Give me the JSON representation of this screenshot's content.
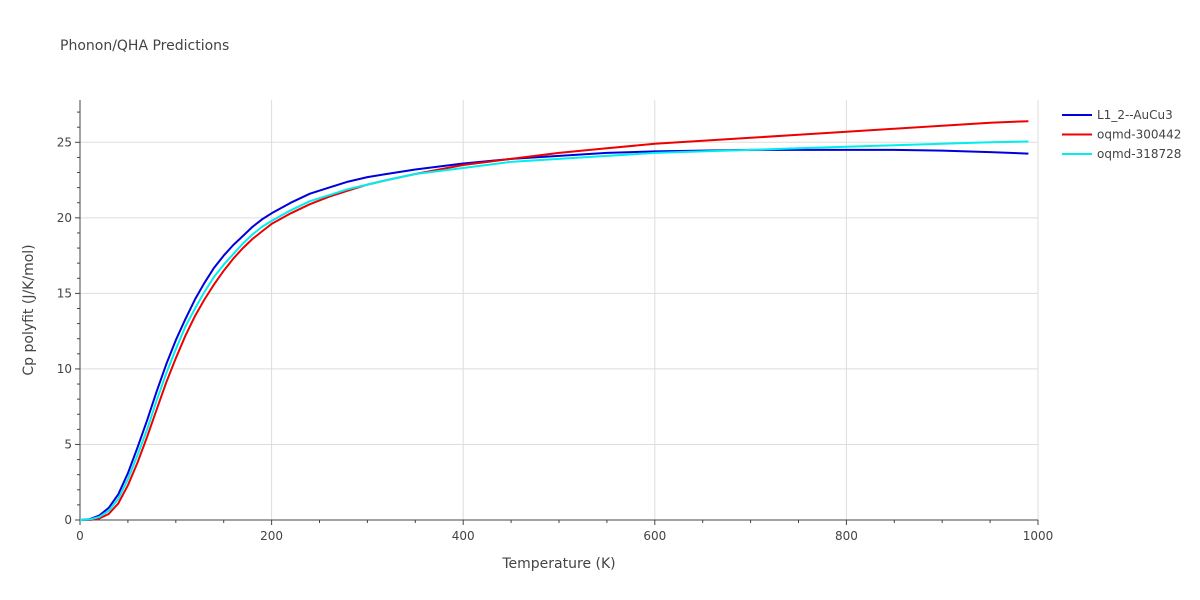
{
  "chart_data": {
    "type": "line",
    "title": "Phonon/QHA Predictions",
    "xlabel": "Temperature (K)",
    "ylabel": "Cp polyfit (J/K/mol)",
    "xlim": [
      0,
      1000
    ],
    "ylim": [
      0,
      27.8
    ],
    "xticks": [
      "0",
      "200",
      "400",
      "600",
      "800",
      "1000"
    ],
    "xtick_values": [
      0,
      200,
      400,
      600,
      800,
      1000
    ],
    "yticks": [
      "0",
      "5",
      "10",
      "15",
      "20",
      "25"
    ],
    "ytick_values": [
      0,
      5,
      10,
      15,
      20,
      25
    ],
    "grid": true,
    "legend_position": "top-right",
    "series": [
      {
        "name": "L1_2--AuCu3",
        "color": "#0000dd",
        "x": [
          0,
          10,
          20,
          30,
          40,
          50,
          60,
          70,
          80,
          90,
          100,
          110,
          120,
          130,
          140,
          150,
          160,
          170,
          180,
          190,
          200,
          220,
          240,
          260,
          280,
          300,
          320,
          350,
          400,
          450,
          500,
          550,
          600,
          650,
          700,
          750,
          800,
          850,
          900,
          950,
          990
        ],
        "y": [
          0,
          0.05,
          0.3,
          0.8,
          1.7,
          3.1,
          4.8,
          6.6,
          8.5,
          10.3,
          11.9,
          13.3,
          14.6,
          15.7,
          16.7,
          17.5,
          18.2,
          18.8,
          19.4,
          19.9,
          20.3,
          21.0,
          21.6,
          22.0,
          22.4,
          22.7,
          22.9,
          23.2,
          23.6,
          23.9,
          24.1,
          24.3,
          24.4,
          24.45,
          24.5,
          24.5,
          24.5,
          24.5,
          24.45,
          24.35,
          24.25
        ]
      },
      {
        "name": "oqmd-300442",
        "color": "#ee0000",
        "x": [
          0,
          10,
          20,
          30,
          40,
          50,
          60,
          70,
          80,
          90,
          100,
          110,
          120,
          130,
          140,
          150,
          160,
          170,
          180,
          190,
          200,
          220,
          240,
          260,
          280,
          300,
          320,
          350,
          400,
          450,
          500,
          550,
          600,
          650,
          700,
          750,
          800,
          850,
          900,
          950,
          990
        ],
        "y": [
          0,
          0,
          0.1,
          0.4,
          1.1,
          2.3,
          3.8,
          5.5,
          7.3,
          9.1,
          10.7,
          12.2,
          13.5,
          14.6,
          15.6,
          16.5,
          17.3,
          18.0,
          18.6,
          19.1,
          19.6,
          20.3,
          20.9,
          21.4,
          21.8,
          22.2,
          22.5,
          22.9,
          23.5,
          23.9,
          24.3,
          24.6,
          24.9,
          25.1,
          25.3,
          25.5,
          25.7,
          25.9,
          26.1,
          26.3,
          26.4
        ]
      },
      {
        "name": "oqmd-318728",
        "color": "#00eeee",
        "x": [
          0,
          10,
          20,
          30,
          40,
          50,
          60,
          70,
          80,
          90,
          100,
          110,
          120,
          130,
          140,
          150,
          160,
          170,
          180,
          190,
          200,
          220,
          240,
          260,
          280,
          300,
          320,
          350,
          400,
          450,
          500,
          550,
          600,
          650,
          700,
          750,
          800,
          850,
          900,
          950,
          990
        ],
        "y": [
          0,
          0.03,
          0.2,
          0.6,
          1.4,
          2.7,
          4.3,
          6.0,
          7.9,
          9.7,
          11.3,
          12.8,
          14.0,
          15.1,
          16.1,
          16.9,
          17.6,
          18.3,
          18.9,
          19.4,
          19.8,
          20.5,
          21.1,
          21.5,
          21.9,
          22.2,
          22.5,
          22.9,
          23.3,
          23.7,
          23.9,
          24.1,
          24.3,
          24.4,
          24.5,
          24.6,
          24.7,
          24.8,
          24.9,
          25.0,
          25.05
        ]
      }
    ]
  }
}
